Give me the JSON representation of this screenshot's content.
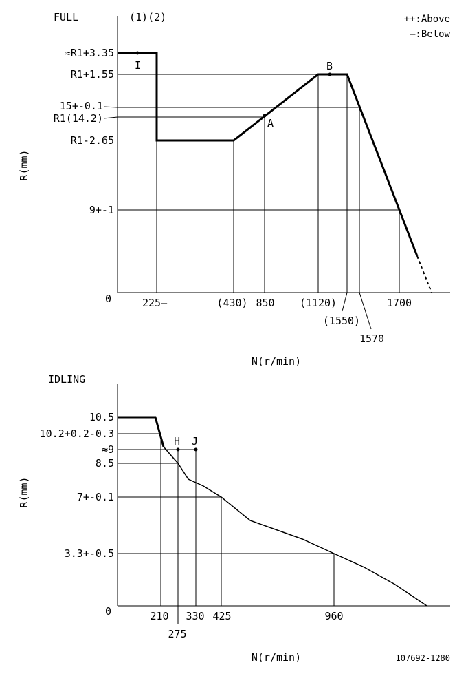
{
  "chart_data": [
    {
      "type": "line",
      "title": "FULL",
      "subtitle": "(1)(2)",
      "legend": [
        "++:Above",
        "—:Below"
      ],
      "xlabel": "N(r/min)",
      "ylabel": "R(mm)",
      "x_ticks": [
        "225—",
        "(430)",
        "850",
        "(1120)",
        "(1550)",
        "1570",
        "1700"
      ],
      "y_ticks": [
        "≈R1+3.35",
        "R1+1.55",
        "15+-0.1",
        "R1(14.2)",
        "R1-2.65",
        "9+-1"
      ],
      "origin_label": "0",
      "points": [
        "I",
        "A",
        "B"
      ],
      "series": [
        {
          "style": "solid",
          "x": [
            0,
            225,
            225,
            430,
            1120,
            1550,
            1700,
            1820
          ],
          "y": [
            "R1+3.35",
            "R1+3.35",
            "R1-2.65",
            "R1-2.65",
            "R1+1.55",
            "R1+1.55",
            "9",
            "0.5"
          ]
        },
        {
          "style": "dashed",
          "x": [
            1820,
            1880
          ],
          "y": [
            "0.5",
            "0"
          ]
        }
      ]
    },
    {
      "type": "line",
      "title": "IDLING",
      "xlabel": "N(r/min)",
      "ylabel": "R(mm)",
      "x_ticks": [
        "210",
        "275",
        "330",
        "425",
        "960"
      ],
      "y_ticks": [
        "10.5",
        "10.2+0.2-0.3",
        "≈9",
        "8.5",
        "7+-0.1",
        "3.3+-0.5"
      ],
      "origin_label": "0",
      "points": [
        "H",
        "J"
      ],
      "series": [
        {
          "x": [
            0,
            190,
            210,
            275,
            330,
            425,
            520,
            960,
            1100,
            1200
          ],
          "y": [
            10.5,
            10.5,
            9,
            8.3,
            7.6,
            7,
            5.6,
            3.3,
            1.6,
            0
          ]
        }
      ]
    }
  ],
  "footer": {
    "code": "107692-1280"
  }
}
